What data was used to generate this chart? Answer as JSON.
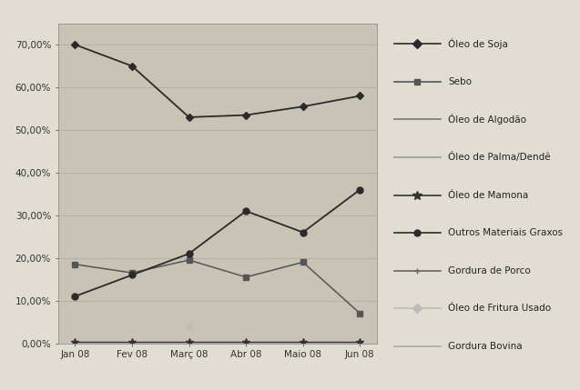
{
  "x_labels": [
    "Jan 08",
    "Fev 08",
    "Març 08",
    "Abr 08",
    "Maio 08",
    "Jun 08"
  ],
  "series": {
    "Óleo de Soja": [
      0.7,
      0.65,
      0.53,
      0.535,
      0.555,
      0.58
    ],
    "Sebo": [
      0.185,
      0.165,
      0.195,
      0.155,
      0.19,
      0.07
    ],
    "Óleo de Algodão": [
      null,
      null,
      null,
      null,
      null,
      null
    ],
    "Óleo de Palma/Dendê": [
      null,
      null,
      null,
      null,
      null,
      null
    ],
    "Óleo de Mamona": [
      0.003,
      0.003,
      0.003,
      0.003,
      0.003,
      0.003
    ],
    "Outros Materiais Graxos": [
      0.11,
      0.16,
      0.21,
      0.31,
      0.26,
      0.36
    ],
    "Gordura de Porco": [
      null,
      null,
      null,
      null,
      null,
      null
    ],
    "Óleo de Fritura Usado": [
      null,
      null,
      0.04,
      null,
      null,
      null
    ],
    "Gordura Bovina": [
      null,
      null,
      null,
      null,
      null,
      null
    ]
  },
  "markers": {
    "Óleo de Soja": "D",
    "Sebo": "s",
    "Óleo de Algodão": "none",
    "Óleo de Palma/Dendê": "none",
    "Óleo de Mamona": "*",
    "Outros Materiais Graxos": "o",
    "Gordura de Porco": "+",
    "Óleo de Fritura Usado": "D",
    "Gordura Bovina": "none"
  },
  "markersizes": {
    "Óleo de Soja": 4,
    "Sebo": 4,
    "Óleo de Algodão": 4,
    "Óleo de Palma/Dendê": 4,
    "Óleo de Mamona": 6,
    "Outros Materiais Graxos": 5,
    "Gordura de Porco": 6,
    "Óleo de Fritura Usado": 4,
    "Gordura Bovina": 4
  },
  "colors": {
    "Óleo de Soja": "#2a2a2a",
    "Sebo": "#555555",
    "Óleo de Algodão": "#777777",
    "Óleo de Palma/Dendê": "#999999",
    "Óleo de Mamona": "#333333",
    "Outros Materiais Graxos": "#2a2a2a",
    "Gordura de Porco": "#666666",
    "Óleo de Fritura Usado": "#bbbbbb",
    "Gordura Bovina": "#aaaaaa"
  },
  "linewidths": {
    "Óleo de Soja": 1.3,
    "Sebo": 1.1,
    "Óleo de Algodão": 1.0,
    "Óleo de Palma/Dendê": 1.0,
    "Óleo de Mamona": 1.0,
    "Outros Materiais Graxos": 1.3,
    "Gordura de Porco": 1.0,
    "Óleo de Fritura Usado": 1.2,
    "Gordura Bovina": 1.0
  },
  "ylim": [
    0.0,
    0.75
  ],
  "yticks": [
    0.0,
    0.1,
    0.2,
    0.3,
    0.4,
    0.5,
    0.6,
    0.7
  ],
  "ytick_labels": [
    "0,00%",
    "10,00%",
    "20,00%",
    "30,00%",
    "40,00%",
    "50,00%",
    "60,00%",
    "70,00%"
  ],
  "plot_bg": "#c9c3b5",
  "fig_bg": "#e2ddd2",
  "legend_bg": "#e8e2d6"
}
